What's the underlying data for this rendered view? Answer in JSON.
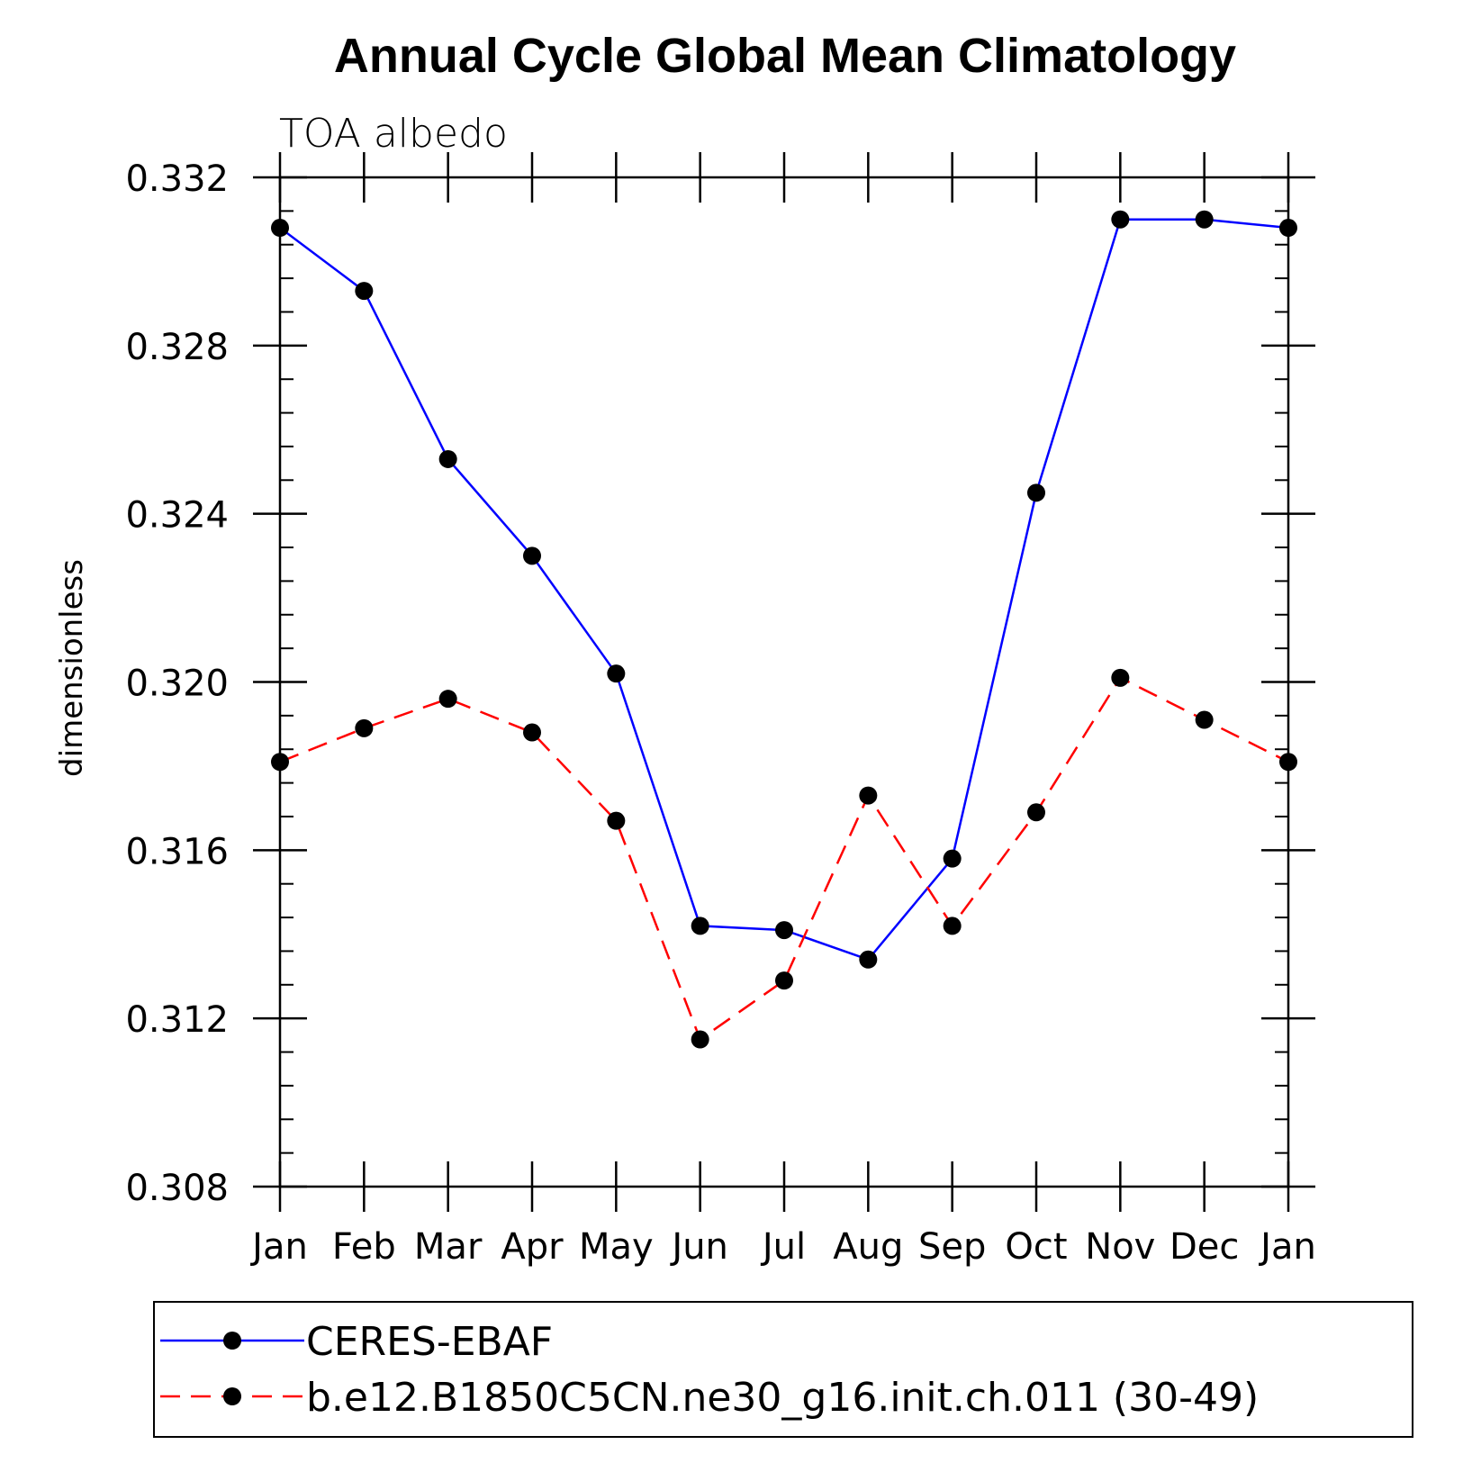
{
  "chart_data": {
    "type": "line",
    "title": "Annual Cycle Global Mean Climatology",
    "subtitle": "TOA albedo",
    "xlabel": "",
    "ylabel": "dimensionless",
    "categories": [
      "Jan",
      "Feb",
      "Mar",
      "Apr",
      "May",
      "Jun",
      "Jul",
      "Aug",
      "Sep",
      "Oct",
      "Nov",
      "Dec",
      "Jan"
    ],
    "ylim": [
      0.308,
      0.332
    ],
    "yticks": [
      0.308,
      0.312,
      0.316,
      0.32,
      0.324,
      0.328,
      0.332
    ],
    "ytick_labels": [
      "0.308",
      "0.312",
      "0.316",
      "0.320",
      "0.324",
      "0.328",
      "0.332"
    ],
    "grid": false,
    "legend_position": "bottom",
    "series": [
      {
        "name": "CERES-EBAF",
        "color": "#0000ff",
        "dash": "solid",
        "values": [
          0.3308,
          0.3293,
          0.3253,
          0.323,
          0.3202,
          0.3142,
          0.3141,
          0.3134,
          0.3158,
          0.3245,
          0.331,
          0.331,
          0.3308
        ]
      },
      {
        "name": "b.e12.B1850C5CN.ne30_g16.init.ch.011 (30-49)",
        "color": "#ff0000",
        "dash": "dashed",
        "values": [
          0.3181,
          0.3189,
          0.3196,
          0.3188,
          0.3167,
          0.3115,
          0.3129,
          0.3173,
          0.3142,
          0.3169,
          0.3201,
          0.3191,
          0.3181
        ]
      }
    ]
  }
}
